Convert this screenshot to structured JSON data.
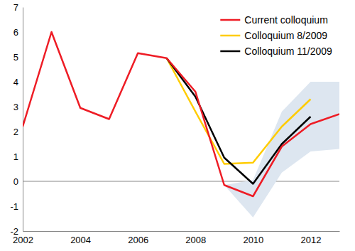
{
  "chart_data": {
    "type": "line",
    "x": [
      2002,
      2003,
      2004,
      2005,
      2006,
      2007,
      2008,
      2009,
      2010,
      2011,
      2012,
      2013
    ],
    "xlim": [
      2002,
      2013
    ],
    "xticks": [
      2002,
      2004,
      2006,
      2008,
      2010,
      2012
    ],
    "ylim": [
      -2,
      7
    ],
    "yticks": [
      -2,
      -1,
      0,
      1,
      2,
      3,
      4,
      5,
      6,
      7
    ],
    "grid": false,
    "legend": "upper right",
    "interval": {
      "color": "#dde6f0",
      "lower": [
        null,
        null,
        null,
        null,
        null,
        null,
        null,
        -0.15,
        -1.45,
        0.35,
        1.2,
        1.3
      ],
      "upper": [
        null,
        null,
        null,
        null,
        null,
        null,
        null,
        -0.15,
        0.05,
        2.8,
        4.0,
        4.0
      ]
    },
    "series": [
      {
        "name": "Current colloquium",
        "color": "#ee1c25",
        "values": [
          2.2,
          6.0,
          2.95,
          2.5,
          5.15,
          4.95,
          3.6,
          -0.15,
          -0.6,
          1.4,
          2.3,
          2.7
        ]
      },
      {
        "name": "Colloquium 8/2009",
        "color": "#ffcc00",
        "values": [
          null,
          null,
          null,
          null,
          null,
          4.95,
          2.8,
          0.7,
          0.75,
          2.2,
          3.3,
          null
        ]
      },
      {
        "name": "Colloquium 11/2009",
        "color": "#000000",
        "values": [
          null,
          null,
          null,
          null,
          null,
          4.95,
          3.4,
          0.95,
          -0.1,
          1.5,
          2.6,
          null
        ]
      }
    ]
  }
}
